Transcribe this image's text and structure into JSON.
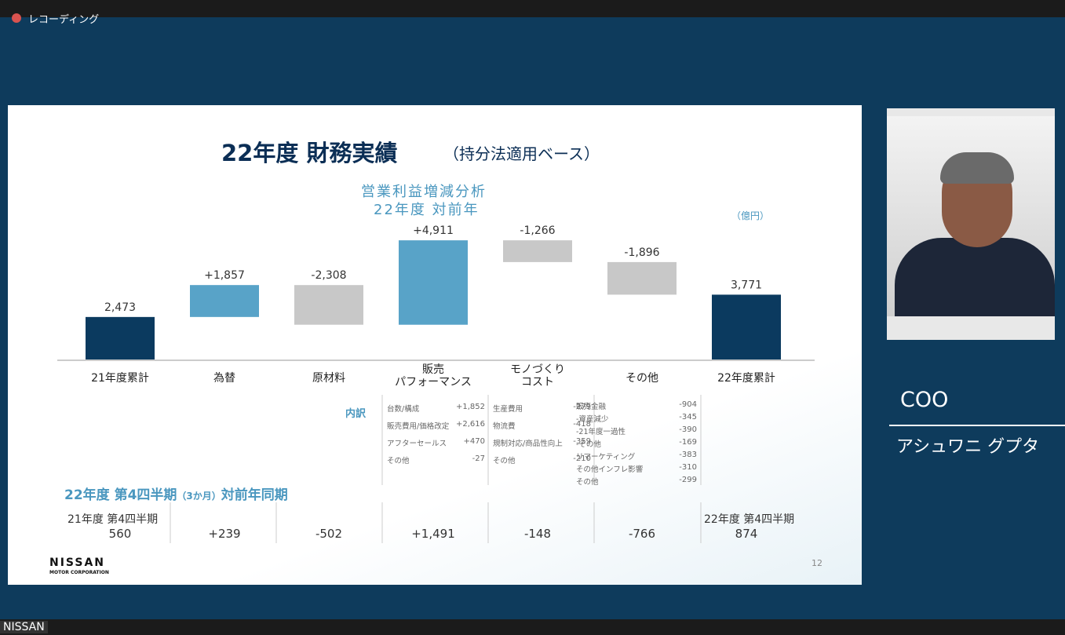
{
  "recording": "レコーディング",
  "slide": {
    "title": "22年度 財務実績",
    "title_note": "（持分法適用ベース）",
    "unit": "（億円）",
    "breakdown_label": "内訳",
    "breakdown": [
      [
        [
          "台数/構成",
          "+1,852"
        ],
        [
          "販売費用/価格改定",
          "+2,616"
        ],
        [
          "アフターセールス",
          "+470"
        ],
        [
          "その他",
          "-27"
        ]
      ],
      [
        [
          "生産費用",
          "-279"
        ],
        [
          "物流費",
          "-418"
        ],
        [
          "規制対応/商品性向上",
          "-359"
        ],
        [
          "その他",
          "-210"
        ]
      ],
      [
        [
          "販売金融",
          "-904"
        ],
        [
          "-資産減少",
          "-345"
        ],
        [
          "-21年度一過性",
          "-390"
        ],
        [
          "-その他",
          "-169"
        ],
        [
          "リマーケティング",
          "-383"
        ],
        [
          "その他インフレ影響",
          "-310"
        ],
        [
          "その他",
          "-299"
        ]
      ]
    ],
    "q4_title": "22年度 第4四半期",
    "q4_note": "（3か月）",
    "q4_suffix": "対前年同期",
    "q4_first_label": "21年度 第4四半期",
    "q4_last_label": "22年度 第4四半期",
    "q4_values": [
      "560",
      "+239",
      "-502",
      "+1,491",
      "-148",
      "-766",
      "874"
    ],
    "logo": "NISSAN",
    "logo_sub": "MOTOR CORPORATION",
    "page_number": "12"
  },
  "chart_data": {
    "type": "waterfall",
    "title": "営業利益増減分析",
    "subtitle": "22年度 対前年",
    "categories": [
      "21年度累計",
      "為替",
      "原材料",
      "販売\nパフォーマンス",
      "モノづくり\nコスト",
      "その他",
      "22年度累計"
    ],
    "values": [
      2473,
      1857,
      -2308,
      4911,
      -1266,
      -1896,
      3771
    ],
    "value_labels": [
      "2,473",
      "+1,857",
      "-2,308",
      "+4,911",
      "-1,266",
      "-1,896",
      "3,771"
    ],
    "measure": [
      "total",
      "relative",
      "relative",
      "relative",
      "relative",
      "relative",
      "total"
    ],
    "total_color": "#0b3a5f",
    "increase_color": "#58a3c8",
    "decrease_color": "#c8c8c8"
  },
  "speaker": {
    "role": "COO",
    "name": "アシュワニ グプタ"
  },
  "participant": "NISSAN"
}
